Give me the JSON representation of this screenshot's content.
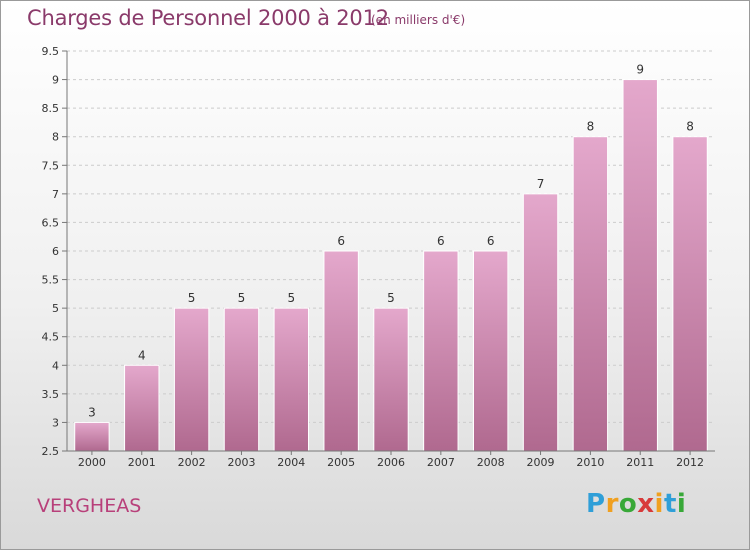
{
  "title": "Charges de Personnel 2000 à 2012",
  "subtitle": "(en milliers d'€)",
  "location": "VERGHEAS",
  "brand": {
    "letters": [
      "P",
      "r",
      "o",
      "x",
      "i",
      "t",
      "i"
    ],
    "colors": [
      "#2f9fd8",
      "#f0a020",
      "#38a838",
      "#d83a3a",
      "#f0a020",
      "#2f9fd8",
      "#38a838"
    ]
  },
  "colors": {
    "bar_top": "#e4a8cc",
    "bar_bottom": "#b0698f",
    "grid": "#cccccc",
    "axis": "#777777"
  },
  "chart_data": {
    "type": "bar",
    "categories": [
      "2000",
      "2001",
      "2002",
      "2003",
      "2004",
      "2005",
      "2006",
      "2007",
      "2008",
      "2009",
      "2010",
      "2011",
      "2012"
    ],
    "values": [
      3,
      4,
      5,
      5,
      5,
      6,
      5,
      6,
      6,
      7,
      8,
      9,
      8
    ],
    "data_labels": [
      "3",
      "4",
      "5",
      "5",
      "5",
      "6",
      "5",
      "6",
      "6",
      "7",
      "8",
      "9",
      "8"
    ],
    "ylim": [
      2.5,
      9.5
    ],
    "yticks": [
      2.5,
      3,
      3.5,
      4,
      4.5,
      5,
      5.5,
      6,
      6.5,
      7,
      7.5,
      8,
      8.5,
      9,
      9.5
    ],
    "ytick_labels": [
      "2.5",
      "3",
      "3.5",
      "4",
      "4.5",
      "5",
      "5.5",
      "6",
      "6.5",
      "7",
      "7.5",
      "8",
      "8.5",
      "9",
      "9.5"
    ],
    "grid": true,
    "legend": "none"
  }
}
